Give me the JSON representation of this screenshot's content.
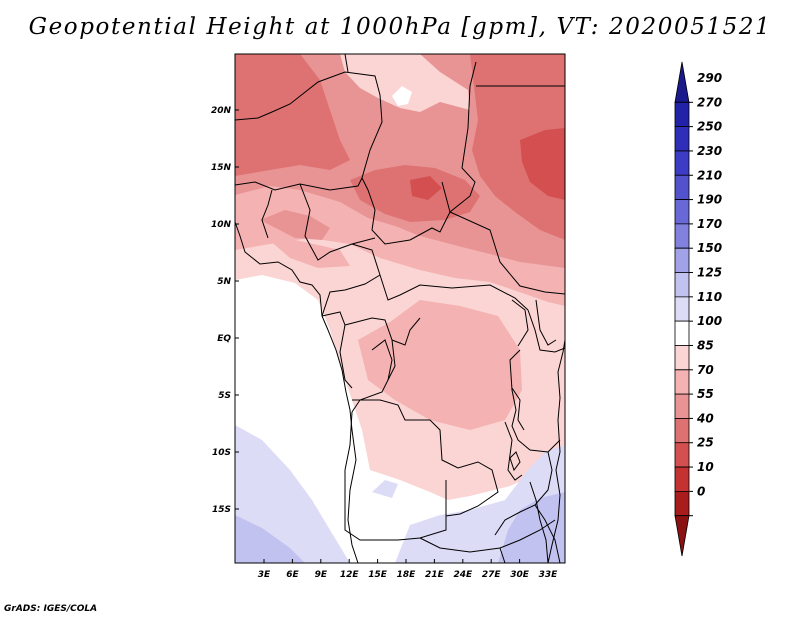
{
  "title": "Geopotential Height at 1000hPa [gpm], VT: 2020051521",
  "credit": "GrADS: IGES/COLA",
  "map": {
    "lon_ticks": [
      "3E",
      "6E",
      "9E",
      "12E",
      "15E",
      "18E",
      "21E",
      "24E",
      "27E",
      "30E",
      "33E"
    ],
    "lat_ticks": [
      "20N",
      "15N",
      "10N",
      "5N",
      "EQ",
      "5S",
      "10S",
      "15S"
    ],
    "lon_range": [
      "0E",
      "35E"
    ],
    "lat_range": [
      "20S",
      "25N"
    ]
  },
  "colorbar": {
    "levels": [
      "290",
      "270",
      "250",
      "230",
      "210",
      "190",
      "170",
      "150",
      "125",
      "110",
      "100",
      "85",
      "70",
      "55",
      "40",
      "25",
      "10",
      "0"
    ],
    "colors_top_to_bottom": [
      "#1a1a8c",
      "#2222a8",
      "#2e2eb8",
      "#3c3cc4",
      "#5252cc",
      "#6868d6",
      "#8282de",
      "#a2a2e8",
      "#c2c2f0",
      "#dcdcf7",
      "#ffffff",
      "#fbd4d4",
      "#f4b2b2",
      "#e89494",
      "#de7272",
      "#d45050",
      "#c43232",
      "#a81c1c",
      "#8c1212"
    ]
  },
  "colors": {
    "white": "#ffffff",
    "light_blue": "#dcdcf7",
    "mid_blue": "#c2c2f0",
    "blue": "#a2a2e8",
    "pale_pink": "#fbd4d4",
    "pink": "#f4b2b2",
    "rose": "#e89494",
    "red": "#de7272",
    "strong_red": "#d45050"
  }
}
